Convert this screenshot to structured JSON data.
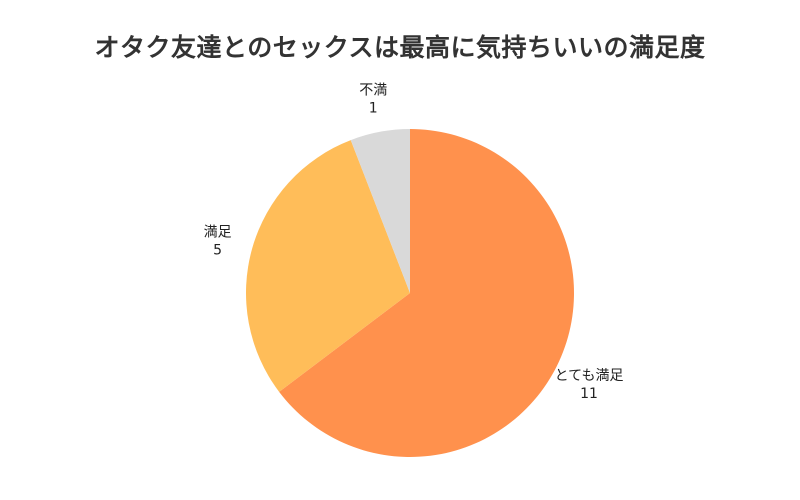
{
  "chart_data": {
    "type": "pie",
    "title": "オタク友達とのセックスは最高に気持ちいいの満足度",
    "start": "top",
    "direction": "clockwise",
    "slices": [
      {
        "label": "とても満足",
        "value": 11,
        "color": "#FF914D"
      },
      {
        "label": "満足",
        "value": 5,
        "color": "#FFBD59"
      },
      {
        "label": "不満",
        "value": 1,
        "color": "#D9D9D9"
      }
    ]
  }
}
